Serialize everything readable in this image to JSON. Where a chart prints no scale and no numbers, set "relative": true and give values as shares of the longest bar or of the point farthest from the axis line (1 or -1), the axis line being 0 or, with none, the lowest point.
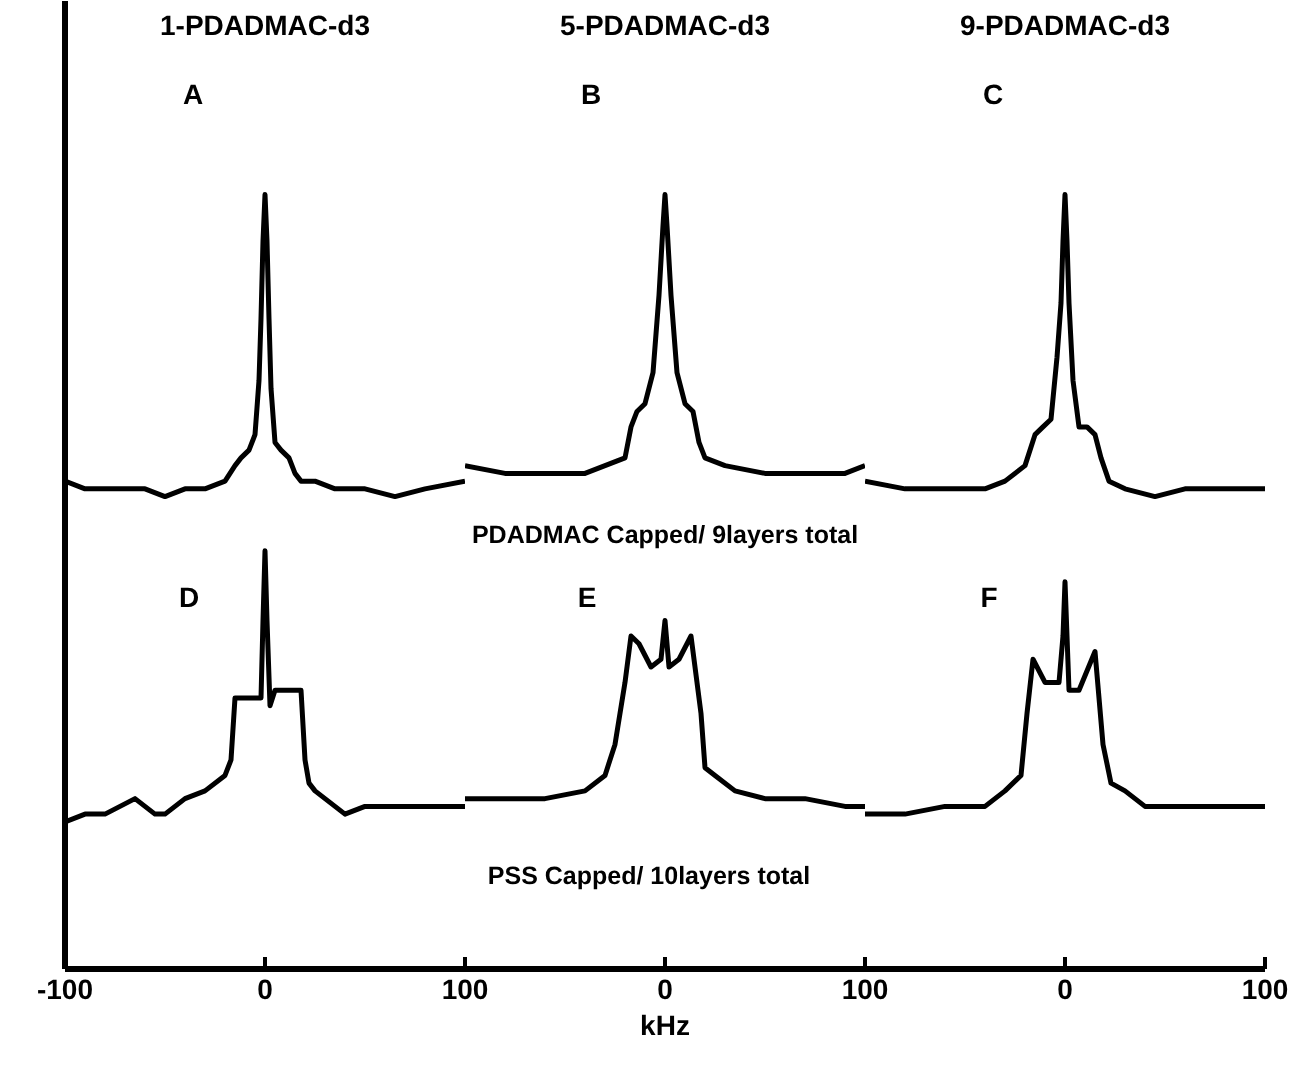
{
  "chart_data": [
    {
      "type": "line",
      "relative": true,
      "title": "1-PDADMAC-d3",
      "xlim": [
        -100,
        100
      ],
      "xticks": [
        -100,
        0,
        100
      ],
      "tick_labels": "x",
      "grid": false,
      "marker": "none",
      "line_style": "solid",
      "annotations": [
        "A",
        "D"
      ],
      "series": [
        {
          "color": "#000000",
          "x": [
            -100,
            -90,
            -80,
            -70,
            -60,
            -50,
            -40,
            -30,
            -20,
            -15,
            -12,
            -8,
            -5,
            -3,
            -2,
            -1,
            0,
            1,
            2,
            3,
            5,
            8,
            12,
            15,
            18,
            25,
            35,
            50,
            65,
            80,
            100
          ],
          "values": [
            0.63,
            0.62,
            0.62,
            0.62,
            0.62,
            0.61,
            0.62,
            0.62,
            0.63,
            0.65,
            0.66,
            0.67,
            0.69,
            0.76,
            0.84,
            0.94,
            1.0,
            0.94,
            0.84,
            0.75,
            0.68,
            0.67,
            0.66,
            0.64,
            0.63,
            0.63,
            0.62,
            0.62,
            0.61,
            0.62,
            0.63
          ]
        },
        {
          "color": "#000000",
          "x": [
            -100,
            -90,
            -80,
            -65,
            -55,
            -50,
            -40,
            -30,
            -20,
            -17,
            -15,
            -12,
            -6,
            -2,
            -1,
            0,
            1,
            2.5,
            5,
            10,
            15,
            18,
            20,
            22,
            25,
            30,
            40,
            50,
            60,
            80,
            100
          ],
          "values": [
            0.19,
            0.2,
            0.2,
            0.22,
            0.2,
            0.2,
            0.22,
            0.23,
            0.25,
            0.27,
            0.35,
            0.35,
            0.35,
            0.35,
            0.45,
            0.54,
            0.45,
            0.34,
            0.36,
            0.36,
            0.36,
            0.36,
            0.27,
            0.24,
            0.23,
            0.22,
            0.2,
            0.21,
            0.21,
            0.21,
            0.21
          ]
        }
      ]
    },
    {
      "type": "line",
      "relative": true,
      "title": "5-PDADMAC-d3",
      "xlabel": "kHz",
      "xlim": [
        -100,
        100
      ],
      "xticks": [
        0,
        100
      ],
      "tick_labels": "x",
      "grid": false,
      "marker": "none",
      "line_style": "solid",
      "annotations": [
        "B",
        "PDADMAC Capped/ 9layers total",
        "E",
        "PSS Capped/ 10layers total"
      ],
      "series": [
        {
          "color": "#000000",
          "x": [
            -100,
            -80,
            -60,
            -40,
            -30,
            -20,
            -17,
            -14,
            -10,
            -6,
            -3,
            -1,
            0,
            1,
            3,
            6,
            10,
            14,
            17,
            20,
            30,
            50,
            70,
            90,
            100
          ],
          "values": [
            0.65,
            0.64,
            0.64,
            0.64,
            0.65,
            0.66,
            0.7,
            0.72,
            0.73,
            0.77,
            0.87,
            0.96,
            1.0,
            0.96,
            0.87,
            0.77,
            0.73,
            0.72,
            0.68,
            0.66,
            0.65,
            0.64,
            0.64,
            0.64,
            0.65
          ]
        },
        {
          "color": "#000000",
          "x": [
            -100,
            -80,
            -60,
            -40,
            -30,
            -25,
            -20,
            -17,
            -13,
            -7,
            -2,
            0,
            2,
            7,
            13,
            18,
            20,
            25,
            35,
            50,
            70,
            90,
            100
          ],
          "values": [
            0.22,
            0.22,
            0.22,
            0.23,
            0.25,
            0.29,
            0.37,
            0.43,
            0.42,
            0.39,
            0.4,
            0.45,
            0.39,
            0.4,
            0.43,
            0.33,
            0.26,
            0.25,
            0.23,
            0.22,
            0.22,
            0.21,
            0.21
          ]
        }
      ]
    },
    {
      "type": "line",
      "relative": true,
      "title": "9-PDADMAC-d3",
      "xlim": [
        -100,
        100
      ],
      "xticks": [
        0,
        100
      ],
      "tick_labels": "x",
      "grid": false,
      "marker": "none",
      "line_style": "solid",
      "annotations": [
        "C",
        "F"
      ],
      "series": [
        {
          "color": "#000000",
          "x": [
            -100,
            -80,
            -60,
            -40,
            -30,
            -20,
            -15,
            -11,
            -7,
            -4,
            -2,
            -1,
            0,
            1,
            2,
            4,
            7,
            11,
            15,
            18,
            22,
            30,
            45,
            60,
            80,
            100
          ],
          "values": [
            0.63,
            0.62,
            0.62,
            0.62,
            0.63,
            0.65,
            0.69,
            0.7,
            0.71,
            0.79,
            0.86,
            0.94,
            1.0,
            0.94,
            0.86,
            0.76,
            0.7,
            0.7,
            0.69,
            0.66,
            0.63,
            0.62,
            0.61,
            0.62,
            0.62,
            0.62
          ]
        },
        {
          "color": "#000000",
          "x": [
            -100,
            -80,
            -60,
            -40,
            -30,
            -22,
            -19,
            -16,
            -10,
            -3,
            -1,
            0,
            1,
            2,
            7,
            15,
            19,
            23,
            30,
            40,
            60,
            80,
            100
          ],
          "values": [
            0.2,
            0.2,
            0.21,
            0.21,
            0.23,
            0.25,
            0.33,
            0.4,
            0.37,
            0.37,
            0.43,
            0.5,
            0.43,
            0.36,
            0.36,
            0.41,
            0.29,
            0.24,
            0.23,
            0.21,
            0.21,
            0.21,
            0.21
          ]
        }
      ]
    }
  ]
}
